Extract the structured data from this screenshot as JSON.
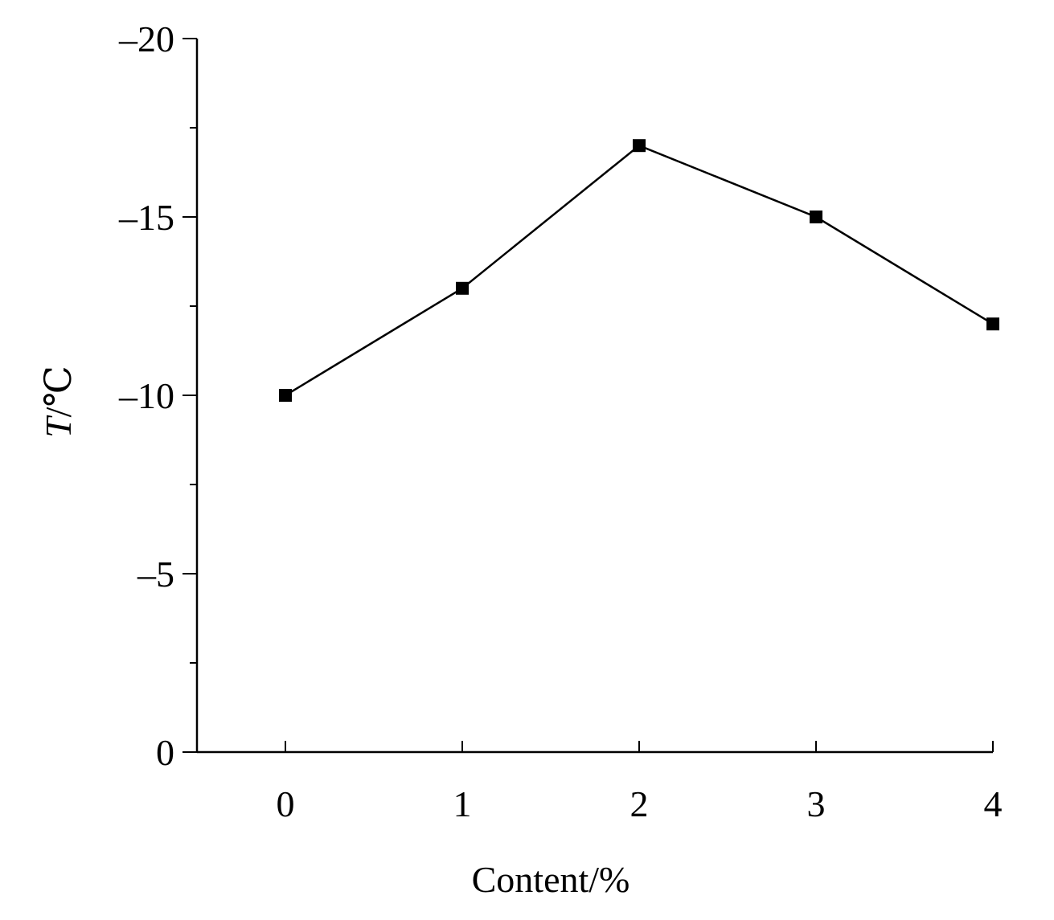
{
  "chart_data": {
    "type": "line",
    "title": "",
    "xlabel": "Content/%",
    "ylabel_italic": "T",
    "ylabel_rest": "/℃",
    "x": [
      0,
      1,
      2,
      3,
      4
    ],
    "series": [
      {
        "values": [
          -10,
          -13,
          -17,
          -15,
          -12
        ]
      }
    ],
    "x_ticks": [
      "0",
      "1",
      "2",
      "3",
      "4"
    ],
    "y_ticks": [
      "0",
      "–5",
      "–10",
      "–15",
      "–20"
    ],
    "y_tick_values": [
      0,
      -5,
      -10,
      -15,
      -20
    ],
    "ylim": [
      0,
      -20
    ],
    "xlim": [
      -0.5,
      4
    ],
    "y_minor_step": 2.5,
    "grid": false,
    "marker": "square",
    "colors": {
      "line": "#000000",
      "marker": "#000000",
      "axis": "#000000"
    }
  }
}
